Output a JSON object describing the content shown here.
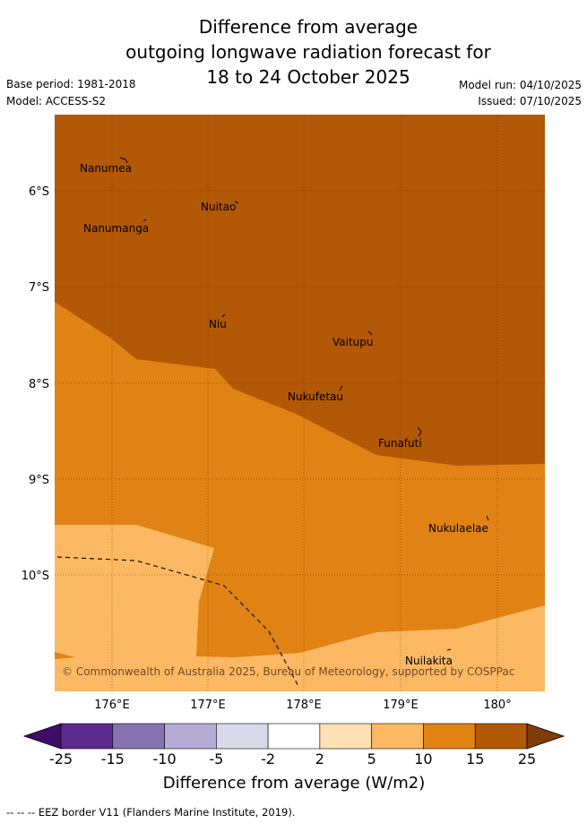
{
  "title": {
    "line1": "Difference from average",
    "line2": "outgoing longwave radiation forecast for",
    "line3": "18 to 24 October 2025"
  },
  "meta": {
    "base_period": "Base period: 1981-2018",
    "model": "Model: ACCESS-S2",
    "model_run": "Model run: 04/10/2025",
    "issued": "Issued: 07/10/2025"
  },
  "map": {
    "lat_labels": [
      "6°S",
      "7°S",
      "8°S",
      "9°S",
      "10°S"
    ],
    "lon_labels": [
      "176°E",
      "177°E",
      "178°E",
      "179°E",
      "180°"
    ],
    "places": [
      {
        "name": "Nanumea"
      },
      {
        "name": "Nuitao"
      },
      {
        "name": "Nanumanga"
      },
      {
        "name": "Niu"
      },
      {
        "name": "Vaitupu"
      },
      {
        "name": "Nukufetau"
      },
      {
        "name": "Funafuti"
      },
      {
        "name": "Nukulaelae"
      },
      {
        "name": "Nuilakita"
      }
    ],
    "copyright": "© Commonwealth of Australia 2025, Bureau of Meteorology, supported by COSPPac"
  },
  "colorbar": {
    "ticks": [
      "-25",
      "-15",
      "-10",
      "-5",
      "-2",
      "2",
      "5",
      "10",
      "15",
      "25"
    ],
    "label": "Difference from average (W/m2)",
    "colors": [
      "#3f0d69",
      "#5b2a8c",
      "#8574af",
      "#b4acd4",
      "#d9d8eb",
      "#ffffff",
      "#fde0b6",
      "#fdb863",
      "#e08214",
      "#b35806",
      "#7f3b08"
    ]
  },
  "footer": "--  --  -- EEZ border V11 (Flanders Marine Institute, 2019)."
}
